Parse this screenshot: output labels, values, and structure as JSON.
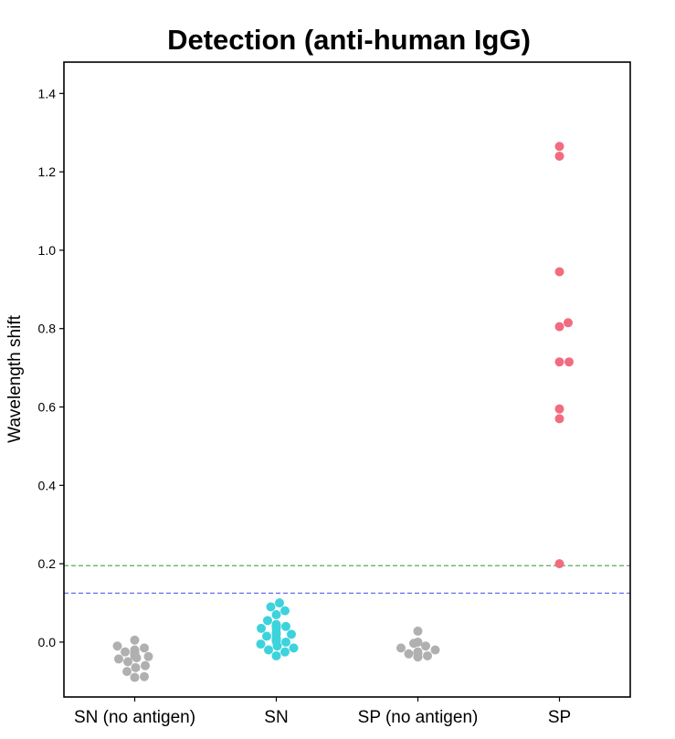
{
  "chart_data": {
    "type": "scatter",
    "subtype": "swarm",
    "title": "Detection (anti-human IgG)",
    "xlabel": "",
    "ylabel": "Wavelength shift",
    "ylim": [
      -0.14,
      1.48
    ],
    "yticks": [
      "0.0",
      "0.2",
      "0.4",
      "0.6",
      "0.8",
      "1.0",
      "1.2",
      "1.4"
    ],
    "ytick_values": [
      0.0,
      0.2,
      0.4,
      0.6,
      0.8,
      1.0,
      1.2,
      1.4
    ],
    "categories": [
      "SN (no antigen)",
      "SN",
      "SP (no antigen)",
      "SP"
    ],
    "series": [
      {
        "name": "SN (no antigen)",
        "color": "#b0b0b0",
        "values": [
          -0.09,
          -0.088,
          -0.075,
          -0.065,
          -0.06,
          -0.05,
          -0.043,
          -0.04,
          -0.037,
          -0.035,
          -0.033,
          -0.032,
          -0.031,
          -0.03,
          -0.029,
          -0.028,
          -0.027,
          -0.026,
          -0.025,
          -0.024,
          -0.023,
          -0.02,
          -0.015,
          -0.01,
          0.005
        ]
      },
      {
        "name": "SN",
        "color": "#3dd3dc",
        "values": [
          -0.035,
          -0.025,
          -0.02,
          -0.015,
          -0.01,
          -0.005,
          0.0,
          0.002,
          0.005,
          0.005,
          0.008,
          0.01,
          0.015,
          0.02,
          0.02,
          0.025,
          0.035,
          0.035,
          0.04,
          0.04,
          0.042,
          0.045,
          0.055,
          0.07,
          0.08,
          0.09,
          0.1
        ]
      },
      {
        "name": "SP (no antigen)",
        "color": "#b0b0b0",
        "values": [
          -0.038,
          -0.035,
          -0.03,
          -0.028,
          -0.025,
          -0.02,
          -0.015,
          -0.01,
          -0.003,
          0.0,
          0.028
        ]
      },
      {
        "name": "SP",
        "color": "#f26b7f",
        "values": [
          0.2,
          0.57,
          0.595,
          0.715,
          0.715,
          0.805,
          0.815,
          0.945,
          1.24,
          1.265
        ]
      }
    ],
    "reference_lines": [
      {
        "name": "threshold-green",
        "y": 0.195,
        "color": "#5fa85f",
        "style": "dashed"
      },
      {
        "name": "threshold-blue",
        "y": 0.125,
        "color": "#5a5af0",
        "style": "dashed"
      }
    ],
    "grid": false,
    "legend": "none"
  }
}
